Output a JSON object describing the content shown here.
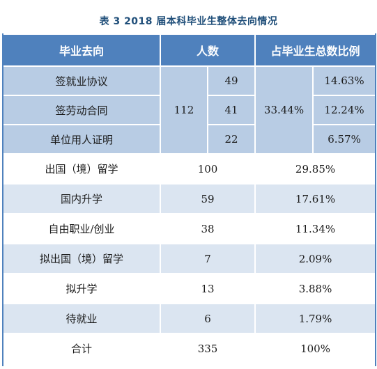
{
  "caption": "表 3   2018 届本科毕业生整体去向情况",
  "header": {
    "col1": "毕业去向",
    "col2": "人数",
    "col3": "占毕业生总数比例"
  },
  "employed_group": {
    "total": "112",
    "total_pct": "33.44%",
    "items": [
      {
        "label": "签就业协议",
        "count": "49",
        "pct": "14.63%"
      },
      {
        "label": "签劳动合同",
        "count": "41",
        "pct": "12.24%"
      },
      {
        "label": "单位用人证明",
        "count": "22",
        "pct": "6.57%"
      }
    ]
  },
  "rows": [
    {
      "label": "出国（境）留学",
      "count": "100",
      "pct": "29.85%"
    },
    {
      "label": "国内升学",
      "count": "59",
      "pct": "17.61%"
    },
    {
      "label": "自由职业/创业",
      "count": "38",
      "pct": "11.34%"
    },
    {
      "label": "拟出国（境）留学",
      "count": "7",
      "pct": "2.09%"
    },
    {
      "label": "拟升学",
      "count": "13",
      "pct": "3.88%"
    },
    {
      "label": "待就业",
      "count": "6",
      "pct": "1.79%"
    },
    {
      "label": "合计",
      "count": "335",
      "pct": "100%"
    }
  ]
}
